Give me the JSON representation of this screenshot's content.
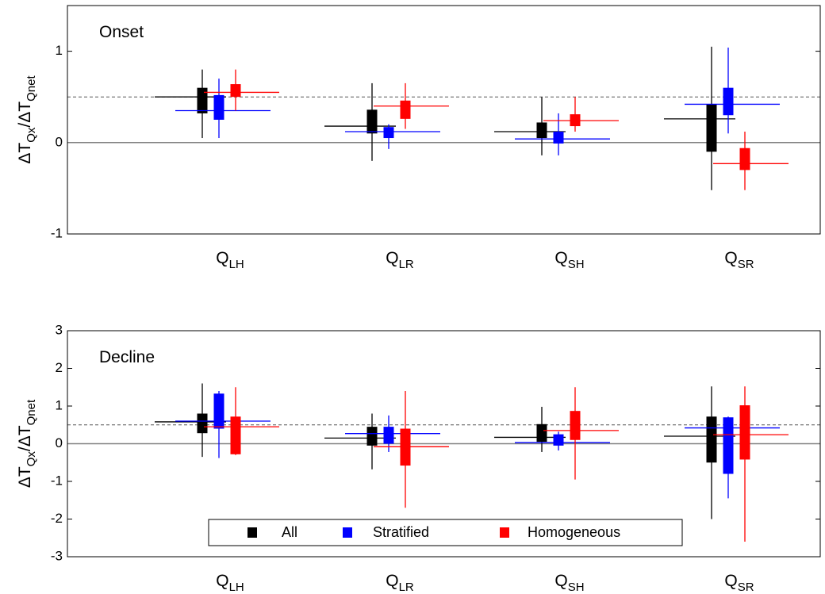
{
  "chart_data": [
    {
      "type": "box",
      "annotation": "Onset",
      "ylabel": [
        "ΔT",
        "Qx",
        "/ΔT",
        "Qnet"
      ],
      "categories": [
        {
          "text": "Q",
          "sub": "LH"
        },
        {
          "text": "Q",
          "sub": "LR"
        },
        {
          "text": "Q",
          "sub": "SH"
        },
        {
          "text": "Q",
          "sub": "SR"
        }
      ],
      "ylim": [
        -1,
        1.5
      ],
      "yticks": [
        -1,
        0,
        1
      ],
      "zero_line": 0,
      "ref_line": 0.5,
      "legend": false,
      "series": [
        {
          "color": "#000000",
          "whisker_low": [
            0.05,
            -0.2,
            -0.14,
            -0.52
          ],
          "whisker_high": [
            0.8,
            0.65,
            0.5,
            1.05
          ],
          "box_low": [
            0.32,
            0.1,
            0.05,
            -0.1
          ],
          "box_high": [
            0.6,
            0.36,
            0.22,
            0.42
          ],
          "line": [
            0.5,
            0.18,
            0.12,
            0.26
          ]
        },
        {
          "color": "#0000ff",
          "whisker_low": [
            0.05,
            -0.07,
            -0.14,
            0.1
          ],
          "whisker_high": [
            0.7,
            0.2,
            0.32,
            1.04
          ],
          "box_low": [
            0.25,
            0.05,
            -0.01,
            0.3
          ],
          "box_high": [
            0.52,
            0.17,
            0.12,
            0.6
          ],
          "line": [
            0.35,
            0.12,
            0.04,
            0.42
          ]
        },
        {
          "color": "#ff0000",
          "whisker_low": [
            0.35,
            0.15,
            0.12,
            -0.52
          ],
          "whisker_high": [
            0.8,
            0.65,
            0.5,
            0.12
          ],
          "box_low": [
            0.5,
            0.26,
            0.18,
            -0.3
          ],
          "box_high": [
            0.64,
            0.46,
            0.31,
            -0.06
          ],
          "line": [
            0.55,
            0.4,
            0.24,
            -0.23
          ]
        }
      ]
    },
    {
      "type": "box",
      "annotation": "Decline",
      "ylabel": [
        "ΔT",
        "Qx",
        "/ΔT",
        "Qnet"
      ],
      "categories": [
        {
          "text": "Q",
          "sub": "LH"
        },
        {
          "text": "Q",
          "sub": "LR"
        },
        {
          "text": "Q",
          "sub": "SH"
        },
        {
          "text": "Q",
          "sub": "SR"
        }
      ],
      "ylim": [
        -3,
        3
      ],
      "yticks": [
        -3,
        -2,
        -1,
        0,
        1,
        2,
        3
      ],
      "zero_line": 0,
      "ref_line": 0.5,
      "legend": true,
      "series": [
        {
          "name": "All",
          "color": "#000000",
          "whisker_low": [
            -0.35,
            -0.68,
            -0.22,
            -2.0
          ],
          "whisker_high": [
            1.6,
            0.8,
            0.98,
            1.52
          ],
          "box_low": [
            0.28,
            -0.05,
            0.05,
            -0.5
          ],
          "box_high": [
            0.8,
            0.45,
            0.52,
            0.72
          ],
          "line": [
            0.58,
            0.15,
            0.17,
            0.2
          ]
        },
        {
          "name": "Stratified",
          "color": "#0000ff",
          "whisker_low": [
            -0.38,
            -0.22,
            -0.18,
            -1.45
          ],
          "whisker_high": [
            1.4,
            0.75,
            0.32,
            0.72
          ],
          "box_low": [
            0.4,
            0.0,
            -0.05,
            -0.8
          ],
          "box_high": [
            1.33,
            0.45,
            0.25,
            0.7
          ],
          "line": [
            0.6,
            0.27,
            0.03,
            0.42
          ]
        },
        {
          "name": "Homogeneous",
          "color": "#ff0000",
          "whisker_low": [
            -0.3,
            -1.7,
            -0.95,
            -2.6
          ],
          "whisker_high": [
            1.5,
            1.4,
            1.5,
            1.52
          ],
          "box_low": [
            -0.28,
            -0.58,
            0.1,
            -0.42
          ],
          "box_high": [
            0.72,
            0.4,
            0.87,
            1.02
          ],
          "line": [
            0.45,
            -0.08,
            0.35,
            0.24
          ]
        }
      ]
    }
  ]
}
